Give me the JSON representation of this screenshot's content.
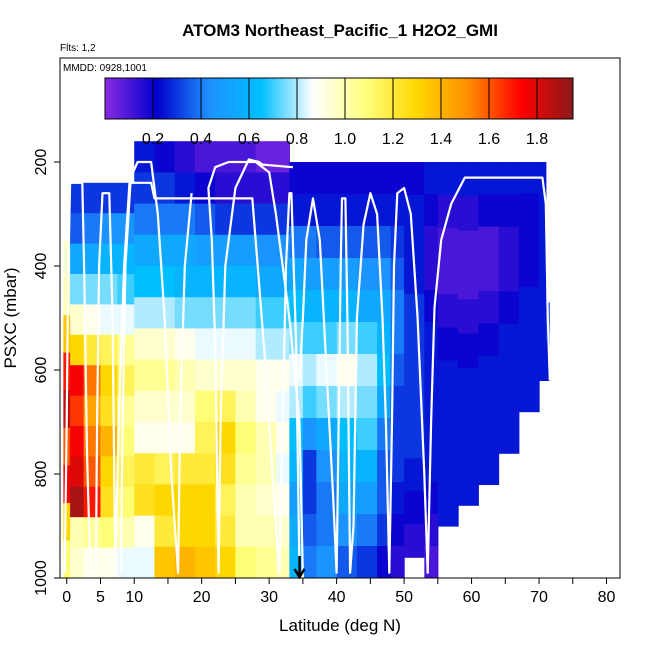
{
  "chart_data": {
    "type": "heatmap",
    "title": "ATOM3 Northeast_Pacific_1 H2O2_GMI",
    "flights_label": "Flts: 1,2",
    "dates_label": "MMDD: 0928,1001",
    "xlabel": "Latitude (deg N)",
    "ylabel": "PSXC (mbar)",
    "xlim": [
      -1,
      82
    ],
    "ylim": [
      1000,
      0
    ],
    "x_ticks": [
      0,
      5,
      10,
      20,
      30,
      40,
      50,
      60,
      70,
      80
    ],
    "y_ticks": [
      200,
      400,
      600,
      800,
      1000
    ],
    "colorbar": {
      "range": [
        0,
        1.95
      ],
      "ticks": [
        "0.2",
        "0.4",
        "0.6",
        "0.8",
        "1.0",
        "1.2",
        "1.4",
        "1.6",
        "1.8"
      ],
      "tick_values": [
        0.2,
        0.4,
        0.6,
        0.8,
        1.0,
        1.2,
        1.4,
        1.6,
        1.8
      ],
      "colors": [
        "#8A2BE2",
        "#0000CD",
        "#1E90FF",
        "#00BFFF",
        "#FFFFFF",
        "#FFFF80",
        "#FFD700",
        "#FF8C00",
        "#FF0000",
        "#8B1A1A"
      ]
    },
    "marker_latitude": 34.5,
    "columns": [
      {
        "lat": [
          -0.5,
          0.5
        ],
        "p": [
          350,
          1000
        ],
        "values": [
          0.95,
          1.0,
          1.35,
          1.7,
          1.85,
          1.6,
          1.75,
          1.3,
          1.1
        ]
      },
      {
        "lat": [
          0.5,
          2.5
        ],
        "p": [
          240,
          1000
        ],
        "values": [
          0.3,
          0.35,
          0.55,
          0.75,
          0.95,
          1.3,
          1.75,
          1.65,
          1.75,
          1.8,
          1.9,
          1.0,
          0.95
        ]
      },
      {
        "lat": [
          2.5,
          5
        ],
        "p": [
          240,
          1000
        ],
        "values": [
          0.3,
          0.4,
          0.55,
          0.75,
          0.9,
          1.2,
          1.55,
          1.45,
          1.55,
          1.6,
          1.7,
          1.05,
          0.9
        ]
      },
      {
        "lat": [
          5,
          7.5
        ],
        "p": [
          240,
          1000
        ],
        "values": [
          0.3,
          0.45,
          0.6,
          0.75,
          0.85,
          1.15,
          1.3,
          1.25,
          1.4,
          1.3,
          1.25,
          1.1,
          0.9
        ]
      },
      {
        "lat": [
          7.5,
          10
        ],
        "p": [
          240,
          1000
        ],
        "values": [
          0.3,
          0.45,
          0.6,
          0.7,
          0.85,
          1.05,
          1.15,
          1.05,
          1.1,
          1.15,
          1.1,
          1.0,
          0.85
        ]
      },
      {
        "lat": [
          10,
          13
        ],
        "p": [
          160,
          1000
        ],
        "values": [
          0.25,
          0.3,
          0.4,
          0.55,
          0.65,
          0.8,
          0.95,
          1.05,
          0.95,
          0.9,
          1.2,
          1.25,
          0.9,
          0.85
        ]
      },
      {
        "lat": [
          13,
          16
        ],
        "p": [
          160,
          1000
        ],
        "values": [
          0.2,
          0.3,
          0.4,
          0.55,
          0.65,
          0.8,
          0.95,
          1.05,
          0.95,
          0.9,
          1.15,
          1.3,
          1.2,
          1.35
        ]
      },
      {
        "lat": [
          16,
          19
        ],
        "p": [
          160,
          1000
        ],
        "values": [
          0.15,
          0.25,
          0.4,
          0.55,
          0.6,
          0.75,
          0.9,
          1.0,
          0.95,
          0.9,
          1.2,
          1.3,
          1.3,
          1.4
        ]
      },
      {
        "lat": [
          19,
          22
        ],
        "p": [
          160,
          1000
        ],
        "values": [
          0.1,
          0.2,
          0.35,
          0.5,
          0.6,
          0.75,
          0.85,
          0.95,
          1.1,
          1.15,
          1.2,
          1.3,
          1.3,
          1.35
        ]
      },
      {
        "lat": [
          22,
          25
        ],
        "p": [
          160,
          1000
        ],
        "values": [
          0.1,
          0.15,
          0.3,
          0.5,
          0.6,
          0.75,
          0.85,
          0.95,
          1.15,
          1.3,
          1.25,
          1.15,
          1.2,
          1.3
        ]
      },
      {
        "lat": [
          25,
          28
        ],
        "p": [
          160,
          1000
        ],
        "values": [
          0.1,
          0.15,
          0.3,
          0.5,
          0.6,
          0.75,
          0.85,
          0.95,
          1.0,
          1.1,
          1.05,
          1.0,
          1.0,
          1.1
        ]
      },
      {
        "lat": [
          28,
          31
        ],
        "p": [
          160,
          1000
        ],
        "values": [
          0.05,
          0.15,
          0.3,
          0.45,
          0.55,
          0.7,
          0.8,
          0.9,
          0.9,
          1.0,
          1.0,
          0.95,
          1.0,
          1.05
        ]
      },
      {
        "lat": [
          31,
          33
        ],
        "p": [
          160,
          1000
        ],
        "values": [
          0.05,
          0.15,
          0.3,
          0.45,
          0.55,
          0.7,
          0.8,
          0.9,
          0.85,
          0.9,
          0.85,
          0.9,
          0.95,
          1.0
        ]
      },
      {
        "lat": [
          33,
          35
        ],
        "p": [
          200,
          1000
        ],
        "values": [
          0.2,
          0.25,
          0.4,
          0.55,
          0.65,
          0.75,
          0.85,
          0.8,
          0.65,
          0.6,
          0.5,
          0.55,
          0.6
        ]
      },
      {
        "lat": [
          35,
          37
        ],
        "p": [
          200,
          1000
        ],
        "values": [
          0.2,
          0.25,
          0.4,
          0.5,
          0.6,
          0.7,
          0.8,
          0.7,
          0.45,
          0.3,
          0.3,
          0.35,
          0.4
        ]
      },
      {
        "lat": [
          37,
          40
        ],
        "p": [
          200,
          1000
        ],
        "values": [
          0.2,
          0.25,
          0.35,
          0.5,
          0.6,
          0.7,
          0.85,
          0.75,
          0.55,
          0.45,
          0.4,
          0.4,
          0.45
        ]
      },
      {
        "lat": [
          40,
          43
        ],
        "p": [
          200,
          1000
        ],
        "values": [
          0.2,
          0.25,
          0.35,
          0.5,
          0.6,
          0.75,
          0.9,
          0.8,
          0.65,
          0.6,
          0.55,
          0.45,
          0.35
        ]
      },
      {
        "lat": [
          43,
          46
        ],
        "p": [
          200,
          1000
        ],
        "values": [
          0.2,
          0.25,
          0.35,
          0.45,
          0.55,
          0.7,
          0.8,
          0.75,
          0.7,
          0.6,
          0.5,
          0.4,
          0.3
        ]
      },
      {
        "lat": [
          46,
          48
        ],
        "p": [
          200,
          1000
        ],
        "values": [
          0.2,
          0.25,
          0.35,
          0.45,
          0.55,
          0.6,
          0.65,
          0.55,
          0.4,
          0.35,
          0.35,
          0.3,
          0.2
        ]
      },
      {
        "lat": [
          48,
          50
        ],
        "p": [
          200,
          1000
        ],
        "values": [
          0.2,
          0.25,
          0.3,
          0.35,
          0.4,
          0.4,
          0.35,
          0.3,
          0.3,
          0.3,
          0.25,
          0.2,
          0.15
        ]
      },
      {
        "lat": [
          50,
          53
        ],
        "p": [
          200,
          960
        ],
        "values": [
          0.2,
          0.25,
          0.25,
          0.25,
          0.3,
          0.3,
          0.3,
          0.3,
          0.3,
          0.25,
          0.2,
          0.15
        ]
      },
      {
        "lat": [
          53,
          55
        ],
        "p": [
          200,
          1000
        ],
        "values": [
          0.25,
          0.2,
          0.15,
          0.15,
          0.2,
          0.25,
          0.25,
          0.25,
          0.25,
          0.25,
          0.2,
          0.15,
          0.1
        ]
      },
      {
        "lat": [
          55,
          58
        ],
        "p": [
          200,
          900
        ],
        "values": [
          0.25,
          0.15,
          0.1,
          0.1,
          0.15,
          0.2,
          0.25,
          0.25,
          0.25,
          0.25,
          0.25
        ]
      },
      {
        "lat": [
          58,
          61
        ],
        "p": [
          200,
          860
        ],
        "values": [
          0.25,
          0.15,
          0.1,
          0.1,
          0.15,
          0.2,
          0.25,
          0.25,
          0.25,
          0.25
        ]
      },
      {
        "lat": [
          61,
          64
        ],
        "p": [
          200,
          820
        ],
        "values": [
          0.25,
          0.2,
          0.1,
          0.1,
          0.15,
          0.2,
          0.25,
          0.25,
          0.25,
          0.25
        ]
      },
      {
        "lat": [
          64,
          67
        ],
        "p": [
          200,
          760
        ],
        "values": [
          0.25,
          0.2,
          0.15,
          0.15,
          0.2,
          0.25,
          0.25,
          0.25,
          0.25
        ]
      },
      {
        "lat": [
          67,
          70
        ],
        "p": [
          200,
          680
        ],
        "values": [
          0.25,
          0.2,
          0.2,
          0.2,
          0.25,
          0.25,
          0.25,
          0.25
        ]
      },
      {
        "lat": [
          70,
          71
        ],
        "p": [
          200,
          620
        ],
        "values": [
          0.25,
          0.25,
          0.25,
          0.25,
          0.25,
          0.25,
          0.25
        ]
      },
      {
        "lat": [
          71,
          71.5
        ],
        "p": [
          470,
          620
        ],
        "values": [
          0.3,
          0.25
        ]
      }
    ],
    "flight_path": [
      [
        -0.3,
        990
      ],
      [
        0,
        700
      ],
      [
        0.2,
        420
      ],
      [
        0.5,
        240
      ],
      [
        2.3,
        240
      ],
      [
        2.6,
        420
      ],
      [
        3.0,
        760
      ],
      [
        3.5,
        990
      ],
      [
        4.3,
        990
      ],
      [
        4.5,
        700
      ],
      [
        4.8,
        400
      ],
      [
        5.3,
        260
      ],
      [
        6.3,
        260
      ],
      [
        6.8,
        500
      ],
      [
        7.2,
        990
      ],
      [
        7.7,
        700
      ],
      [
        8.5,
        400
      ],
      [
        9.3,
        240
      ],
      [
        12.5,
        240
      ],
      [
        13.0,
        270
      ],
      [
        27.5,
        270
      ],
      [
        28.3,
        400
      ],
      [
        29.5,
        600
      ],
      [
        30.5,
        800
      ],
      [
        31.5,
        990
      ],
      [
        32.0,
        700
      ],
      [
        32.5,
        400
      ],
      [
        33.0,
        260
      ],
      [
        33.3,
        260
      ],
      [
        34.0,
        550
      ],
      [
        34.5,
        990
      ],
      [
        35.0,
        1000
      ],
      [
        34.5,
        700
      ],
      [
        33.0,
        500
      ],
      [
        32.0,
        400
      ],
      [
        31.0,
        300
      ],
      [
        30.0,
        220
      ],
      [
        28.0,
        200
      ],
      [
        24.0,
        200
      ],
      [
        22.0,
        210
      ],
      [
        21.0,
        250
      ],
      [
        21.5,
        350
      ],
      [
        22.0,
        550
      ],
      [
        22.5,
        990
      ],
      [
        22.8,
        700
      ],
      [
        23.5,
        400
      ],
      [
        25.0,
        250
      ],
      [
        27.0,
        195
      ],
      [
        28.5,
        200
      ],
      [
        29.0,
        205
      ],
      [
        33.5,
        210
      ]
    ],
    "flight_path_2": [
      [
        8.0,
        990
      ],
      [
        8.3,
        700
      ],
      [
        8.7,
        400
      ],
      [
        9.5,
        230
      ],
      [
        10.5,
        200
      ],
      [
        12.5,
        200
      ],
      [
        13.5,
        300
      ],
      [
        14.5,
        500
      ],
      [
        15.5,
        800
      ],
      [
        16.5,
        990
      ],
      [
        16.8,
        700
      ],
      [
        17.5,
        400
      ],
      [
        18.5,
        260
      ]
    ],
    "flight_path_3": [
      [
        34.5,
        620
      ],
      [
        35.0,
        500
      ],
      [
        35.5,
        350
      ],
      [
        36.5,
        270
      ],
      [
        37.5,
        350
      ],
      [
        38.5,
        600
      ],
      [
        39.5,
        850
      ],
      [
        40.0,
        990
      ],
      [
        40.3,
        700
      ],
      [
        40.6,
        400
      ],
      [
        40.8,
        270
      ],
      [
        41.3,
        270
      ],
      [
        41.6,
        500
      ],
      [
        42.0,
        990
      ],
      [
        42.5,
        900
      ],
      [
        43.0,
        500
      ],
      [
        44.0,
        320
      ],
      [
        45.0,
        260
      ],
      [
        46.0,
        300
      ],
      [
        46.8,
        500
      ],
      [
        47.3,
        700
      ],
      [
        47.8,
        990
      ],
      [
        48.2,
        700
      ],
      [
        48.5,
        400
      ],
      [
        49.0,
        260
      ],
      [
        50.0,
        250
      ],
      [
        51.0,
        300
      ],
      [
        52.0,
        500
      ],
      [
        53.0,
        800
      ],
      [
        53.5,
        990
      ],
      [
        54.0,
        700
      ],
      [
        54.5,
        480
      ],
      [
        55.5,
        350
      ],
      [
        57.0,
        280
      ],
      [
        59.0,
        230
      ],
      [
        70.5,
        230
      ],
      [
        71.0,
        280
      ],
      [
        71.3,
        500
      ],
      [
        71.6,
        620
      ]
    ]
  }
}
